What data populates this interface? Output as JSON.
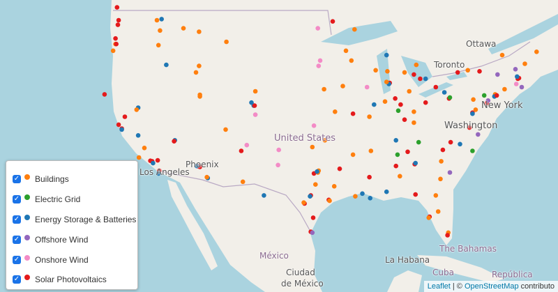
{
  "legend": {
    "items": [
      {
        "label": "Buildings",
        "color": "#ff7f0e",
        "checked": true
      },
      {
        "label": "Electric Grid",
        "color": "#2ca02c",
        "checked": true
      },
      {
        "label": "Energy Storage & Batteries",
        "color": "#1f77b4",
        "checked": true
      },
      {
        "label": "Offshore Wind",
        "color": "#9467bd",
        "checked": true
      },
      {
        "label": "Onshore Wind",
        "color": "#f38bc6",
        "checked": true
      },
      {
        "label": "Solar Photovoltaics",
        "color": "#e41a1c",
        "checked": true
      }
    ]
  },
  "map_labels": {
    "ottawa": "Ottawa",
    "toronto": "Toronto",
    "new_york": "New York",
    "washington": "Washington",
    "united_states": "United States",
    "phoenix": "Phoenix",
    "los_angeles": "Los Angeles",
    "mexico": "México",
    "ciudad": "Ciudad",
    "de_mexico": "de México",
    "la_habana": "La Habana",
    "cuba": "Cuba",
    "bahamas": "The Bahamas",
    "republica": "República"
  },
  "attribution": {
    "leaflet": "Leaflet",
    "sep": " | © ",
    "osm": "OpenStreetMap",
    "contrib": " contributo"
  },
  "colors": {
    "water": "#aad3df",
    "land": "#f2efe9",
    "border": "#b9a9c4"
  },
  "points": [
    [
      47.6,
      -122.3,
      5
    ],
    [
      47.2,
      -122.4,
      5
    ],
    [
      48.7,
      -122.5,
      5
    ],
    [
      46.0,
      -122.7,
      5
    ],
    [
      45.5,
      -122.7,
      0
    ],
    [
      45.5,
      -122.6,
      5
    ],
    [
      44.9,
      -123.0,
      0
    ],
    [
      47.6,
      -117.4,
      0
    ],
    [
      47.7,
      -116.8,
      2
    ],
    [
      46.7,
      -117.0,
      0
    ],
    [
      45.4,
      -117.2,
      0
    ],
    [
      46.6,
      -112.0,
      0
    ],
    [
      45.7,
      -108.5,
      0
    ],
    [
      46.9,
      -114.0,
      0
    ],
    [
      46.9,
      -96.8,
      4
    ],
    [
      44.9,
      -93.2,
      0
    ],
    [
      44.0,
      -92.5,
      0
    ],
    [
      46.8,
      -92.1,
      0
    ],
    [
      47.5,
      -94.9,
      5
    ],
    [
      44.5,
      -88.0,
      2
    ],
    [
      43.1,
      -89.4,
      0
    ],
    [
      43.0,
      -87.9,
      0
    ],
    [
      44.0,
      -96.5,
      4
    ],
    [
      43.5,
      -96.7,
      4
    ],
    [
      38.6,
      -121.5,
      5
    ],
    [
      37.8,
      -122.3,
      5
    ],
    [
      37.4,
      -121.9,
      5
    ],
    [
      37.3,
      -121.9,
      2
    ],
    [
      36.7,
      -119.8,
      2
    ],
    [
      35.4,
      -119.0,
      0
    ],
    [
      34.05,
      -118.24,
      5
    ],
    [
      34.0,
      -118.0,
      5
    ],
    [
      33.8,
      -117.9,
      2
    ],
    [
      34.1,
      -117.3,
      5
    ],
    [
      33.0,
      -117.1,
      5
    ],
    [
      32.7,
      -117.2,
      2
    ],
    [
      34.4,
      -119.7,
      0
    ],
    [
      40.8,
      -124.1,
      5
    ],
    [
      39.5,
      -119.8,
      2
    ],
    [
      39.3,
      -120.0,
      0
    ],
    [
      36.2,
      -115.1,
      2
    ],
    [
      36.1,
      -115.2,
      5
    ],
    [
      33.45,
      -112.07,
      5
    ],
    [
      33.4,
      -111.9,
      5
    ],
    [
      33.5,
      -112.3,
      2
    ],
    [
      32.2,
      -110.9,
      2
    ],
    [
      32.3,
      -111.0,
      0
    ],
    [
      40.76,
      -111.9,
      0
    ],
    [
      40.6,
      -111.9,
      0
    ],
    [
      39.7,
      -105.0,
      2
    ],
    [
      39.7,
      -104.9,
      5
    ],
    [
      40.0,
      -105.3,
      2
    ],
    [
      38.8,
      -104.8,
      4
    ],
    [
      41.1,
      -104.8,
      0
    ],
    [
      37.3,
      -108.6,
      0
    ],
    [
      35.1,
      -106.6,
      5
    ],
    [
      35.7,
      -105.9,
      4
    ],
    [
      43.6,
      -116.2,
      2
    ],
    [
      43.5,
      -112.0,
      0
    ],
    [
      42.9,
      -112.4,
      0
    ],
    [
      35.2,
      -101.8,
      4
    ],
    [
      33.6,
      -101.9,
      4
    ],
    [
      31.8,
      -106.4,
      0
    ],
    [
      30.3,
      -103.7,
      2
    ],
    [
      32.8,
      -96.8,
      0
    ],
    [
      32.7,
      -97.3,
      5
    ],
    [
      33.0,
      -96.7,
      0
    ],
    [
      32.9,
      -96.9,
      2
    ],
    [
      31.5,
      -97.1,
      0
    ],
    [
      30.3,
      -97.7,
      5
    ],
    [
      30.2,
      -97.8,
      2
    ],
    [
      29.8,
      -95.4,
      5
    ],
    [
      29.7,
      -95.3,
      0
    ],
    [
      29.4,
      -98.5,
      5
    ],
    [
      29.5,
      -98.6,
      0
    ],
    [
      27.8,
      -97.4,
      5
    ],
    [
      26.2,
      -97.7,
      5
    ],
    [
      26.1,
      -97.5,
      3
    ],
    [
      31.3,
      -94.7,
      0
    ],
    [
      33.2,
      -94.0,
      5
    ],
    [
      35.5,
      -97.5,
      0
    ],
    [
      36.2,
      -95.9,
      0
    ],
    [
      37.7,
      -97.3,
      4
    ],
    [
      39.1,
      -94.6,
      0
    ],
    [
      38.6,
      -90.2,
      0
    ],
    [
      38.9,
      -92.3,
      5
    ],
    [
      41.3,
      -96.0,
      0
    ],
    [
      41.6,
      -93.6,
      0
    ],
    [
      41.9,
      -87.6,
      5
    ],
    [
      41.8,
      -87.7,
      2
    ],
    [
      42.0,
      -88.0,
      0
    ],
    [
      41.5,
      -90.5,
      4
    ],
    [
      40.1,
      -88.2,
      0
    ],
    [
      39.8,
      -89.6,
      2
    ],
    [
      35.1,
      -90.0,
      0
    ],
    [
      34.7,
      -92.3,
      0
    ],
    [
      32.3,
      -90.2,
      5
    ],
    [
      30.5,
      -91.1,
      2
    ],
    [
      30.0,
      -90.1,
      2
    ],
    [
      30.2,
      -92.0,
      0
    ],
    [
      42.3,
      -83.0,
      2
    ],
    [
      42.3,
      -83.7,
      5
    ],
    [
      42.7,
      -84.5,
      5
    ],
    [
      42.9,
      -85.7,
      0
    ],
    [
      43.6,
      -84.2,
      0
    ],
    [
      41.5,
      -81.7,
      5
    ],
    [
      40.0,
      -83.0,
      5
    ],
    [
      39.1,
      -84.5,
      0
    ],
    [
      39.8,
      -86.2,
      5
    ],
    [
      41.1,
      -85.1,
      0
    ],
    [
      39.2,
      -86.5,
      1
    ],
    [
      40.4,
      -86.9,
      5
    ],
    [
      38.3,
      -85.7,
      5
    ],
    [
      36.2,
      -86.8,
      2
    ],
    [
      35.0,
      -85.3,
      5
    ],
    [
      36.0,
      -83.9,
      1
    ],
    [
      38.0,
      -84.5,
      0
    ],
    [
      40.4,
      -80.0,
      5
    ],
    [
      40.5,
      -79.9,
      1
    ],
    [
      41.0,
      -80.6,
      2
    ],
    [
      33.7,
      -84.4,
      5
    ],
    [
      33.8,
      -84.3,
      2
    ],
    [
      33.5,
      -86.8,
      5
    ],
    [
      32.4,
      -86.3,
      0
    ],
    [
      35.2,
      -80.8,
      5
    ],
    [
      35.8,
      -78.6,
      2
    ],
    [
      36.0,
      -79.8,
      5
    ],
    [
      34.0,
      -81.0,
      0
    ],
    [
      32.8,
      -79.9,
      3
    ],
    [
      32.1,
      -81.1,
      0
    ],
    [
      30.3,
      -81.7,
      0
    ],
    [
      30.4,
      -84.3,
      5
    ],
    [
      28.5,
      -81.4,
      0
    ],
    [
      27.9,
      -82.5,
      5
    ],
    [
      27.8,
      -82.6,
      0
    ],
    [
      26.1,
      -80.1,
      0
    ],
    [
      25.8,
      -80.2,
      5
    ],
    [
      30.7,
      -88.0,
      2
    ],
    [
      34.7,
      -86.6,
      1
    ],
    [
      36.8,
      -76.3,
      3
    ],
    [
      37.5,
      -77.4,
      5
    ],
    [
      35.1,
      -77.0,
      1
    ],
    [
      39.0,
      -77.0,
      5
    ],
    [
      39.3,
      -76.6,
      0
    ],
    [
      39.95,
      -75.16,
      5
    ],
    [
      40.2,
      -75.0,
      3
    ],
    [
      40.7,
      -74.0,
      5
    ],
    [
      40.8,
      -74.1,
      0
    ],
    [
      40.6,
      -74.2,
      2
    ],
    [
      40.7,
      -73.9,
      5
    ],
    [
      41.3,
      -72.9,
      0
    ],
    [
      42.36,
      -71.06,
      5
    ],
    [
      42.3,
      -71.2,
      5
    ],
    [
      42.5,
      -71.3,
      2
    ],
    [
      41.8,
      -71.4,
      4
    ],
    [
      42.7,
      -73.8,
      3
    ],
    [
      43.0,
      -76.1,
      5
    ],
    [
      43.1,
      -77.6,
      0
    ],
    [
      42.9,
      -78.9,
      5
    ],
    [
      44.5,
      -73.2,
      0
    ],
    [
      43.7,
      -70.3,
      0
    ],
    [
      44.8,
      -68.8,
      0
    ],
    [
      41.5,
      -70.7,
      3
    ],
    [
      40.3,
      -76.9,
      0
    ],
    [
      38.9,
      -77.0,
      2
    ],
    [
      40.7,
      -75.5,
      1
    ],
    [
      43.2,
      -71.5,
      3
    ]
  ]
}
